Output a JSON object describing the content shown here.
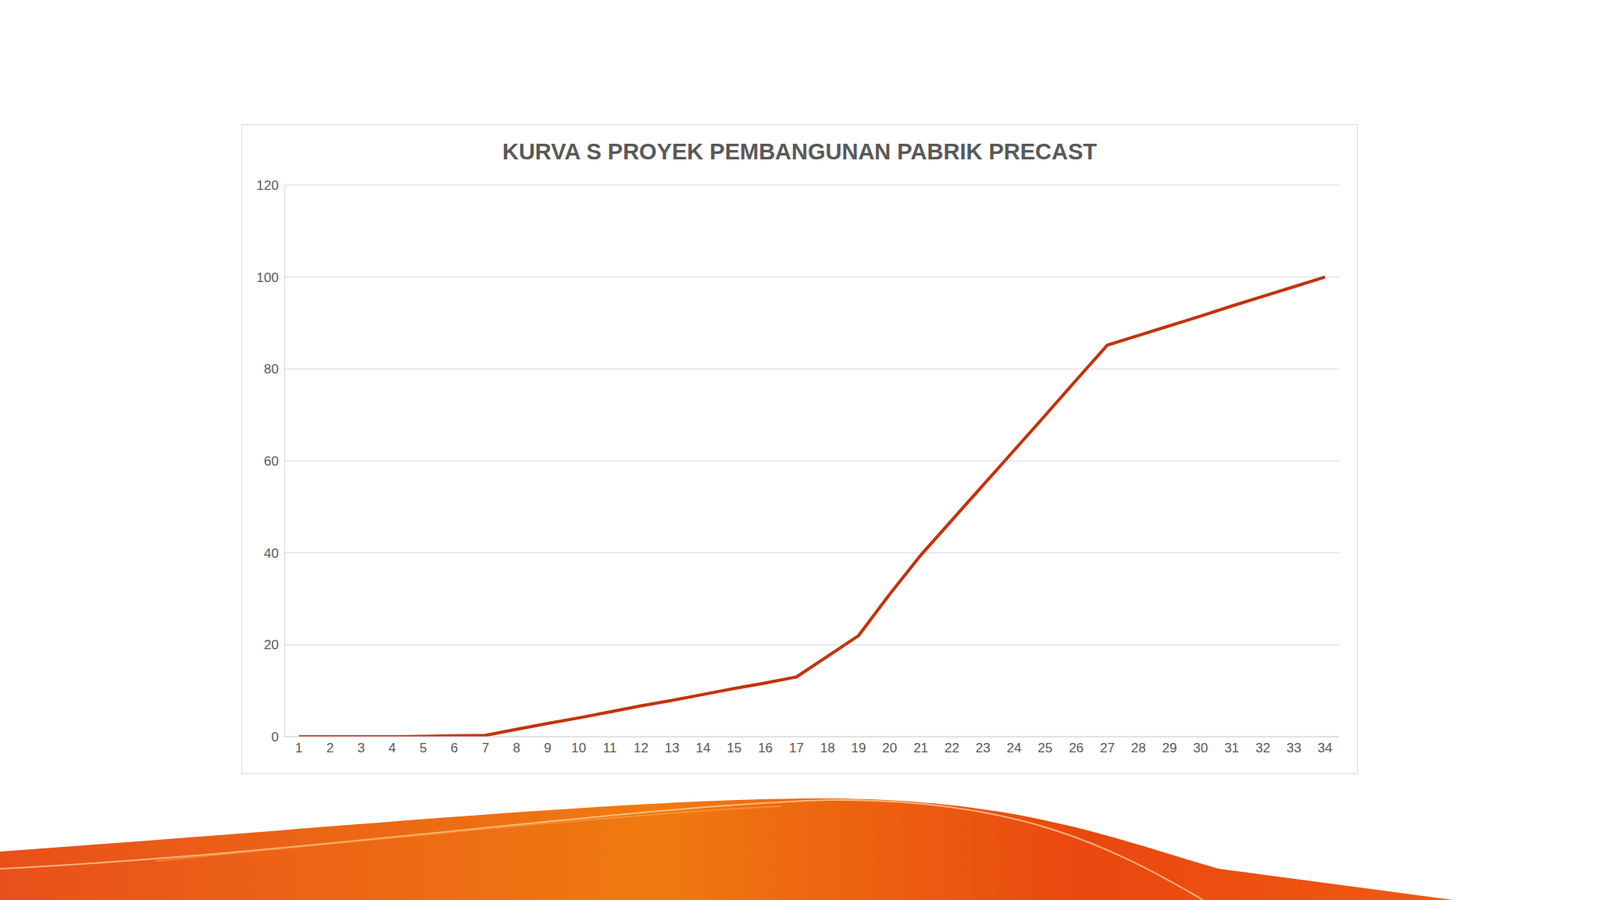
{
  "chart_data": {
    "type": "line",
    "title": "KURVA S PROYEK PEMBANGUNAN PABRIK PRECAST",
    "categories": [
      "1",
      "2",
      "3",
      "4",
      "5",
      "6",
      "7",
      "8",
      "9",
      "10",
      "11",
      "12",
      "13",
      "14",
      "15",
      "16",
      "17",
      "18",
      "19",
      "20",
      "21",
      "22",
      "23",
      "24",
      "25",
      "26",
      "27",
      "28",
      "29",
      "30",
      "31",
      "32",
      "33",
      "34"
    ],
    "values": [
      0,
      0,
      0,
      0,
      0.1,
      0.2,
      0.3,
      1.6,
      2.9,
      4.1,
      5.4,
      6.7,
      7.9,
      9.2,
      10.5,
      11.7,
      13,
      17.5,
      22,
      31,
      39.5,
      47.1,
      54.7,
      62.3,
      69.9,
      77.6,
      85.2,
      87.3,
      89.4,
      91.5,
      93.7,
      95.8,
      97.9,
      100
    ],
    "color": "#c4320a",
    "ylim": [
      0,
      120
    ],
    "yticks": [
      0,
      20,
      40,
      60,
      80,
      100,
      120
    ],
    "grid": true
  }
}
